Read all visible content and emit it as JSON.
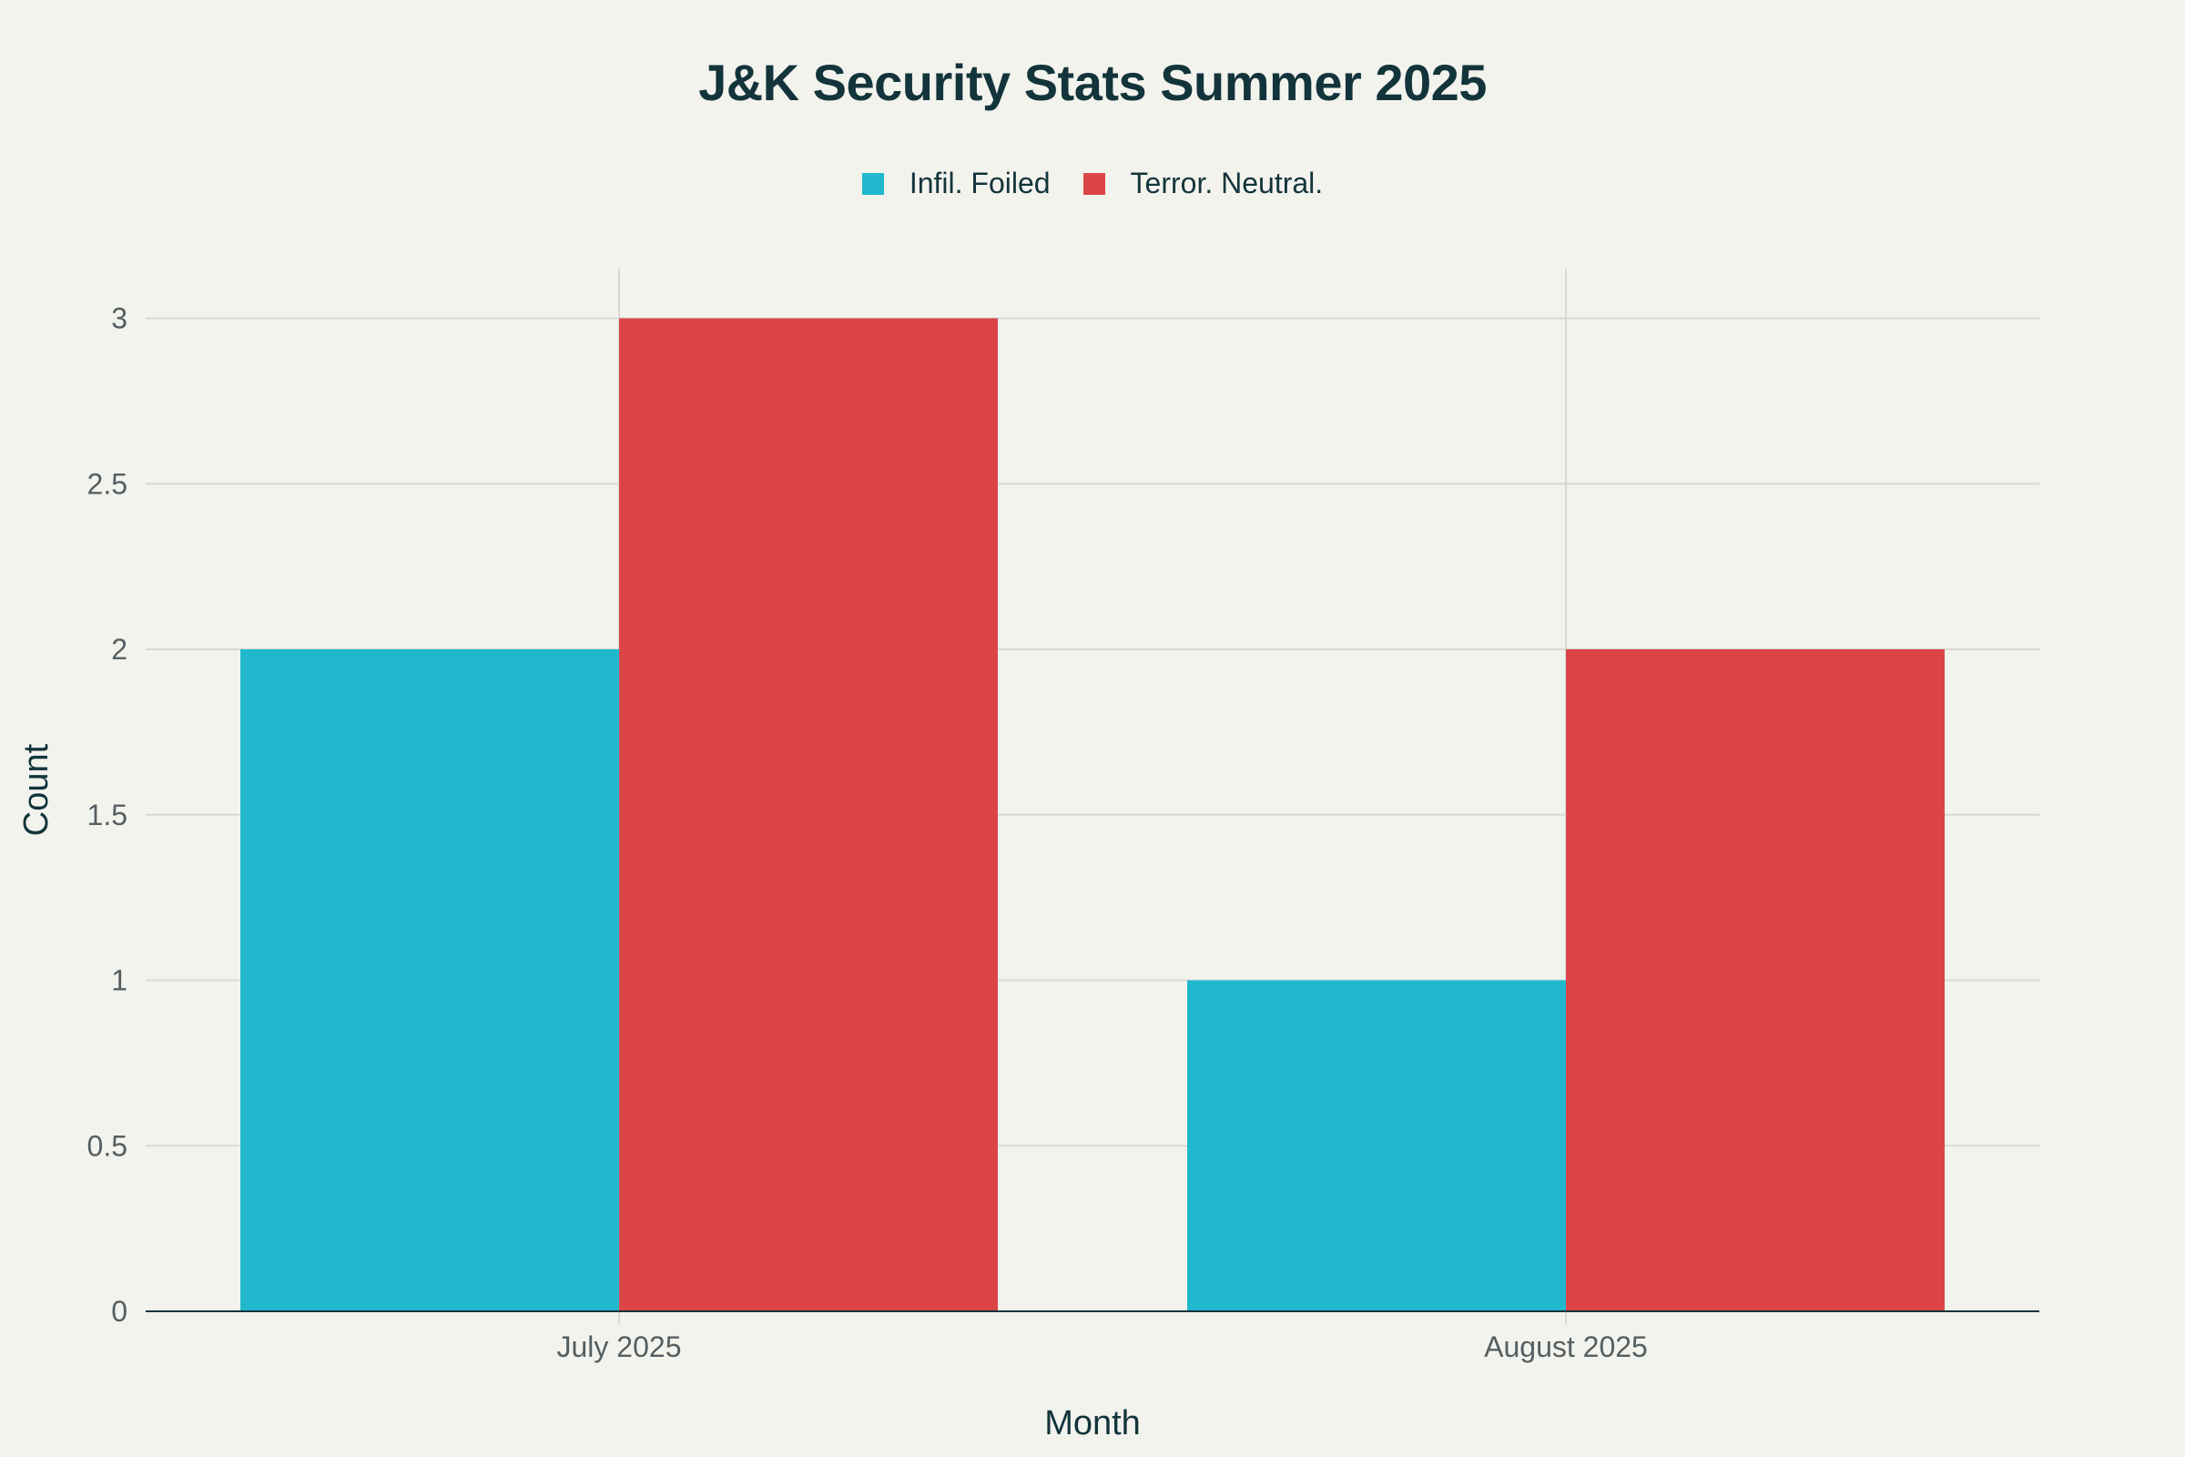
{
  "chart_data": {
    "type": "bar",
    "title": "J&K Security Stats Summer 2025",
    "xlabel": "Month",
    "ylabel": "Count",
    "categories": [
      "July 2025",
      "August 2025"
    ],
    "series": [
      {
        "name": "Infil. Foiled",
        "values": [
          2,
          1
        ],
        "color": "#21b8cd"
      },
      {
        "name": "Terror. Neutral.",
        "values": [
          3,
          2
        ],
        "color": "#db4547"
      }
    ],
    "ylim": [
      0,
      3.15
    ],
    "yticks": [
      0,
      0.5,
      1,
      1.5,
      2,
      2.5,
      3
    ],
    "ytick_labels": [
      "0",
      "0.5",
      "1",
      "1.5",
      "2",
      "2.5",
      "3"
    ],
    "grid": true,
    "legend_position": "top-center",
    "colors": {
      "background": "#f3f3ee",
      "grid": "#d9d9d4",
      "axis": "#13343b"
    }
  }
}
